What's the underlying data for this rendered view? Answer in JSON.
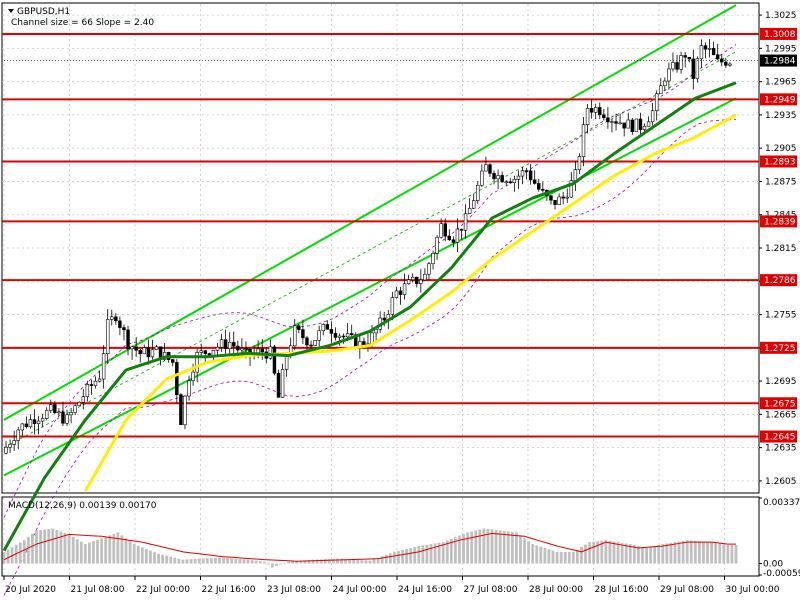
{
  "chart_data": [
    {
      "type": "candlestick",
      "symbol_label": "GBPUSD,H1",
      "channel_label": "Channel size = 66 Slope = 2.40",
      "ylim": [
        1.2595,
        1.3035
      ],
      "y_ticks": [
        "1.3025",
        "1.2995",
        "1.2965",
        "1.2935",
        "1.2905",
        "1.2875",
        "1.2845",
        "1.2815",
        "1.2785",
        "1.2755",
        "1.2725",
        "1.2695",
        "1.2665",
        "1.2635",
        "1.2605"
      ],
      "x_labels": [
        "20 Jul 2020",
        "21 Jul 08:00",
        "22 Jul 00:00",
        "22 Jul 16:00",
        "23 Jul 08:00",
        "24 Jul 00:00",
        "24 Jul 16:00",
        "27 Jul 08:00",
        "28 Jul 00:00",
        "28 Jul 16:00",
        "29 Jul 08:00",
        "30 Jul 00:00"
      ],
      "current_price": "1.2984",
      "levels": [
        "1.3008",
        "1.2949",
        "1.2893",
        "1.2839",
        "1.2786",
        "1.2725",
        "1.2675",
        "1.2645"
      ],
      "close_path": [
        [
          0,
          1.263
        ],
        [
          4,
          1.2652
        ],
        [
          8,
          1.2662
        ],
        [
          12,
          1.2668
        ],
        [
          16,
          1.266
        ],
        [
          20,
          1.2682
        ],
        [
          24,
          1.27
        ],
        [
          26,
          1.2745
        ],
        [
          28,
          1.2755
        ],
        [
          31,
          1.273
        ],
        [
          34,
          1.272
        ],
        [
          38,
          1.2722
        ],
        [
          42,
          1.2712
        ],
        [
          44,
          1.266
        ],
        [
          46,
          1.27
        ],
        [
          48,
          1.2718
        ],
        [
          52,
          1.2725
        ],
        [
          56,
          1.273
        ],
        [
          60,
          1.2718
        ],
        [
          64,
          1.2722
        ],
        [
          66,
          1.272
        ],
        [
          68,
          1.268
        ],
        [
          70,
          1.272
        ],
        [
          72,
          1.274
        ],
        [
          76,
          1.273
        ],
        [
          80,
          1.2745
        ],
        [
          84,
          1.2735
        ],
        [
          88,
          1.2728
        ],
        [
          91,
          1.2735
        ],
        [
          94,
          1.2752
        ],
        [
          97,
          1.2775
        ],
        [
          100,
          1.2782
        ],
        [
          104,
          1.279
        ],
        [
          108,
          1.2835
        ],
        [
          111,
          1.2825
        ],
        [
          114,
          1.284
        ],
        [
          117,
          1.287
        ],
        [
          119,
          1.2888
        ],
        [
          122,
          1.288
        ],
        [
          126,
          1.2878
        ],
        [
          129,
          1.2885
        ],
        [
          132,
          1.2868
        ],
        [
          135,
          1.2855
        ],
        [
          138,
          1.286
        ],
        [
          141,
          1.288
        ],
        [
          144,
          1.2942
        ],
        [
          147,
          1.294
        ],
        [
          150,
          1.2932
        ],
        [
          154,
          1.2926
        ],
        [
          157,
          1.2925
        ],
        [
          160,
          1.2938
        ],
        [
          163,
          1.297
        ],
        [
          166,
          1.298
        ],
        [
          168,
          1.299
        ],
        [
          170,
          1.297
        ],
        [
          172,
          1.2995
        ],
        [
          174,
          1.2992
        ],
        [
          176,
          1.2982
        ],
        [
          178,
          1.2984
        ]
      ],
      "sma_green": [
        [
          0,
          1.2542
        ],
        [
          10,
          1.2608
        ],
        [
          20,
          1.266
        ],
        [
          30,
          1.2705
        ],
        [
          40,
          1.2717
        ],
        [
          50,
          1.2717
        ],
        [
          60,
          1.272
        ],
        [
          70,
          1.2718
        ],
        [
          80,
          1.2727
        ],
        [
          90,
          1.274
        ],
        [
          100,
          1.2762
        ],
        [
          110,
          1.2797
        ],
        [
          120,
          1.2842
        ],
        [
          130,
          1.286
        ],
        [
          140,
          1.2873
        ],
        [
          150,
          1.29
        ],
        [
          160,
          1.2925
        ],
        [
          170,
          1.295
        ],
        [
          180,
          1.2964
        ]
      ],
      "sma_yellow": [
        [
          20,
          1.2596
        ],
        [
          30,
          1.266
        ],
        [
          40,
          1.2697
        ],
        [
          50,
          1.2712
        ],
        [
          60,
          1.2718
        ],
        [
          70,
          1.272
        ],
        [
          80,
          1.2722
        ],
        [
          90,
          1.2727
        ],
        [
          100,
          1.275
        ],
        [
          110,
          1.2775
        ],
        [
          120,
          1.2805
        ],
        [
          130,
          1.283
        ],
        [
          140,
          1.2855
        ],
        [
          150,
          1.288
        ],
        [
          160,
          1.29
        ],
        [
          170,
          1.2915
        ],
        [
          180,
          1.2935
        ]
      ],
      "channel_lower": [
        [
          0,
          1.261
        ],
        [
          180,
          1.295
        ]
      ],
      "channel_upper": [
        [
          0,
          1.266
        ],
        [
          180,
          1.3034
        ]
      ]
    },
    {
      "type": "bar",
      "indicator_label": "MACD(12,26,9) 0.00139 0.00170",
      "ylim": [
        -0.00059,
        0.00337
      ],
      "y_ticks": [
        "0.00337",
        "0.00",
        "-0.00059"
      ],
      "histogram_path": [
        [
          0,
          0.0006
        ],
        [
          5,
          0.0012
        ],
        [
          8,
          0.0017
        ],
        [
          12,
          0.0018
        ],
        [
          16,
          0.0015
        ],
        [
          20,
          0.001
        ],
        [
          24,
          0.0013
        ],
        [
          28,
          0.0016
        ],
        [
          32,
          0.001
        ],
        [
          38,
          0.0005
        ],
        [
          44,
          0.0002
        ],
        [
          48,
          0.00025
        ],
        [
          54,
          0.0003
        ],
        [
          60,
          0.0002
        ],
        [
          64,
          0.0001
        ],
        [
          66,
          -0.0002
        ],
        [
          70,
          0.0001
        ],
        [
          76,
          0.0002
        ],
        [
          82,
          0.00025
        ],
        [
          86,
          0.0002
        ],
        [
          90,
          0.00015
        ],
        [
          96,
          0.0006
        ],
        [
          102,
          0.0009
        ],
        [
          108,
          0.0011
        ],
        [
          114,
          0.0016
        ],
        [
          118,
          0.0018
        ],
        [
          122,
          0.0017
        ],
        [
          126,
          0.0016
        ],
        [
          130,
          0.001
        ],
        [
          136,
          0.0006
        ],
        [
          140,
          0.0006
        ],
        [
          144,
          0.0011
        ],
        [
          148,
          0.0012
        ],
        [
          154,
          0.001
        ],
        [
          158,
          0.0008
        ],
        [
          162,
          0.001
        ],
        [
          168,
          0.0012
        ],
        [
          174,
          0.0011
        ],
        [
          178,
          0.00095
        ]
      ],
      "signal_path": [
        [
          0,
          0.0002
        ],
        [
          8,
          0.001
        ],
        [
          16,
          0.0015
        ],
        [
          24,
          0.0014
        ],
        [
          34,
          0.0011
        ],
        [
          44,
          0.0006
        ],
        [
          54,
          0.00035
        ],
        [
          64,
          0.0002
        ],
        [
          72,
          0.00012
        ],
        [
          82,
          0.00018
        ],
        [
          92,
          0.00025
        ],
        [
          102,
          0.0006
        ],
        [
          112,
          0.0012
        ],
        [
          120,
          0.00155
        ],
        [
          128,
          0.0014
        ],
        [
          136,
          0.0009
        ],
        [
          142,
          0.0006
        ],
        [
          148,
          0.0011
        ],
        [
          156,
          0.0008
        ],
        [
          162,
          0.0009
        ],
        [
          168,
          0.0011
        ],
        [
          174,
          0.0011
        ],
        [
          178,
          0.001
        ]
      ]
    }
  ]
}
